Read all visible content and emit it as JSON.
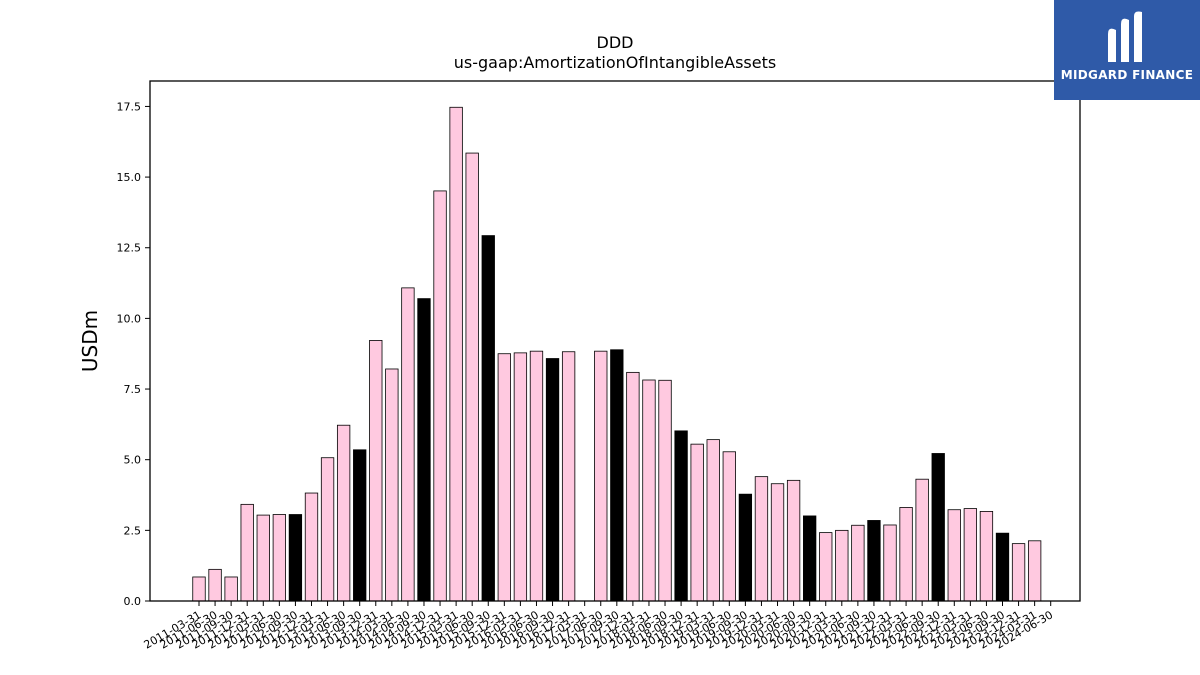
{
  "chart_data": {
    "type": "bar",
    "title": "DDD",
    "subtitle": "us-gaap:AmortizationOfIntangibleAssets",
    "xlabel": "",
    "ylabel": "USDm",
    "ylim": [
      0,
      18.4
    ],
    "yticks": [
      "0.0",
      "2.5",
      "5.0",
      "7.5",
      "10.0",
      "12.5",
      "15.0",
      "17.5"
    ],
    "ytick_values": [
      0,
      2.5,
      5,
      7.5,
      10,
      12.5,
      15,
      17.5
    ],
    "categories": [
      "2011-03-31",
      "2011-06-30",
      "2011-09-30",
      "2011-12-31",
      "2012-03-31",
      "2012-06-30",
      "2012-09-30",
      "2012-12-31",
      "2013-03-31",
      "2013-06-30",
      "2013-09-30",
      "2013-12-31",
      "2014-03-31",
      "2014-06-30",
      "2014-09-30",
      "2014-12-31",
      "2015-03-31",
      "2015-06-30",
      "2015-09-30",
      "2015-12-31",
      "2016-03-31",
      "2016-06-30",
      "2016-09-30",
      "2016-12-31",
      "2017-03-31",
      "2017-06-30",
      "2017-09-30",
      "2017-12-31",
      "2018-03-31",
      "2018-06-30",
      "2018-09-30",
      "2018-12-31",
      "2019-03-31",
      "2019-06-30",
      "2019-09-30",
      "2019-12-31",
      "2020-03-31",
      "2020-06-30",
      "2020-09-30",
      "2020-12-31",
      "2021-03-31",
      "2021-06-30",
      "2021-09-30",
      "2021-12-31",
      "2022-03-31",
      "2022-06-30",
      "2022-09-30",
      "2022-12-31",
      "2023-03-31",
      "2023-06-30",
      "2023-09-30",
      "2023-12-31",
      "2024-03-31",
      "2024-06-30"
    ],
    "values": [
      0.85,
      1.12,
      0.85,
      3.42,
      3.04,
      3.06,
      3.06,
      3.82,
      5.07,
      6.22,
      5.35,
      9.22,
      8.21,
      11.08,
      10.7,
      14.51,
      17.47,
      15.85,
      12.93,
      8.75,
      8.78,
      8.84,
      8.58,
      8.82,
      null,
      8.84,
      8.89,
      8.09,
      7.82,
      7.81,
      6.02,
      5.55,
      5.71,
      5.28,
      3.78,
      4.4,
      4.15,
      4.27,
      3.01,
      2.42,
      2.5,
      2.68,
      2.85,
      2.69,
      3.31,
      4.31,
      5.22,
      3.23,
      3.27,
      3.17,
      2.4,
      2.03,
      2.13,
      null
    ],
    "colors": [
      "pink",
      "pink",
      "pink",
      "pink",
      "pink",
      "pink",
      "black",
      "pink",
      "pink",
      "pink",
      "black",
      "pink",
      "pink",
      "pink",
      "black",
      "pink",
      "pink",
      "pink",
      "black",
      "pink",
      "pink",
      "pink",
      "black",
      "pink",
      "pink",
      "pink",
      "black",
      "pink",
      "pink",
      "pink",
      "black",
      "pink",
      "pink",
      "pink",
      "black",
      "pink",
      "pink",
      "pink",
      "black",
      "pink",
      "pink",
      "pink",
      "black",
      "pink",
      "pink",
      "pink",
      "black",
      "pink",
      "pink",
      "pink",
      "black",
      "pink",
      "pink",
      "pink"
    ],
    "color_map": {
      "pink": "#ffc9e0",
      "black": "#000000"
    },
    "grid": false
  },
  "logo": {
    "text": "MIDGARD FINANCE",
    "color": "#2f5aa8"
  }
}
